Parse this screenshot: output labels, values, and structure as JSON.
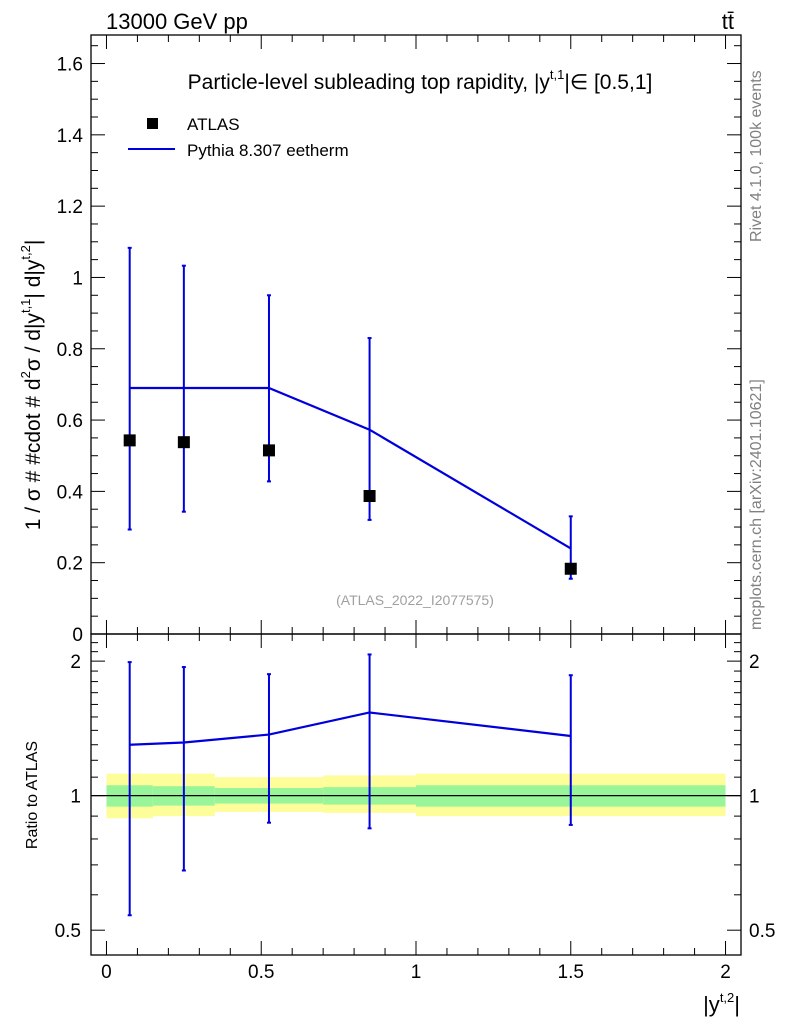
{
  "header": {
    "energy_label": "13000 GeV pp",
    "process_label": "tt̄"
  },
  "side_labels": {
    "rivet": "Rivet 4.1.0,  100k events",
    "mcplots": "mcplots.cern.ch [arXiv:2401.10621]"
  },
  "watermark": "(ATLAS_2022_I2077575)",
  "colors": {
    "data": "#000000",
    "mc": "#0000dd",
    "band_1sigma": "#99f599",
    "band_2sigma": "#fdfd99"
  },
  "chart_data": [
    {
      "type": "scatter",
      "title": "Particle-level subleading top rapidity, |y^{t,1}| ∈ [0.5,1]",
      "title_parts": {
        "pre": "Particle-level subleading top rapidity, |y",
        "sup": "t,1",
        "post": "|∈ [0.5,1]"
      },
      "xlabel": "",
      "ylabel": "1 / σ # #cdot # d²σ / d|y^{t,1}| d|y^{t,2}|",
      "ylabel_parts": {
        "a": "1 / σ # #cdot # d",
        "b": "2",
        "c": "σ / d|y",
        "d": "t,1",
        "e": "| d|y",
        "f": "t,2",
        "g": "|"
      },
      "xlim": [
        -0.05,
        2.05
      ],
      "ylim": [
        0,
        1.68
      ],
      "y_ticks": [
        0,
        0.2,
        0.4,
        0.6,
        0.8,
        1,
        1.2,
        1.4,
        1.6
      ],
      "y_tick_labels": [
        "0",
        "0.2",
        "0.4",
        "0.6",
        "0.8",
        "1",
        "1.2",
        "1.4",
        "1.6"
      ],
      "legend": {
        "position": "top-left",
        "entries": [
          "ATLAS",
          "Pythia 8.307 eetherm"
        ]
      },
      "series": [
        {
          "name": "ATLAS",
          "marker": "square",
          "x": [
            0.075,
            0.25,
            0.525,
            0.85,
            1.5
          ],
          "y": [
            0.543,
            0.538,
            0.515,
            0.387,
            0.183
          ],
          "err_low": [
            0.25,
            0.195,
            0.087,
            0.067,
            0.028
          ],
          "err_high": [
            0.54,
            0.495,
            0.435,
            0.443,
            0.147
          ]
        },
        {
          "name": "Pythia 8.307 eetherm",
          "type": "line",
          "x": [
            0.075,
            0.25,
            0.525,
            0.85,
            1.5
          ],
          "y": [
            0.69,
            0.69,
            0.69,
            0.573,
            0.24
          ]
        }
      ]
    },
    {
      "type": "scatter",
      "xlabel": "|y^{t,2}|",
      "xlabel_parts": {
        "base": "|y",
        "sup": "t,2",
        "end": "|"
      },
      "ylabel": "Ratio to ATLAS",
      "yscale": "log",
      "xlim": [
        -0.05,
        2.05
      ],
      "ylim": [
        0.44,
        2.3
      ],
      "x_ticks": [
        0,
        0.5,
        1,
        1.5,
        2
      ],
      "x_tick_labels": [
        "0",
        "0.5",
        "1",
        "1.5",
        "2"
      ],
      "y_ticks": [
        0.5,
        1,
        2
      ],
      "y_tick_labels": [
        "0.5",
        "1",
        "2"
      ],
      "bands": {
        "edges": [
          0,
          0.15,
          0.35,
          0.7,
          1.0,
          2.0
        ],
        "inner": [
          [
            0.945,
            1.055
          ],
          [
            0.95,
            1.05
          ],
          [
            0.96,
            1.04
          ],
          [
            0.955,
            1.045
          ],
          [
            0.945,
            1.055
          ]
        ],
        "outer": [
          [
            0.89,
            1.12
          ],
          [
            0.9,
            1.12
          ],
          [
            0.92,
            1.1
          ],
          [
            0.915,
            1.11
          ],
          [
            0.9,
            1.12
          ]
        ]
      },
      "series": [
        {
          "name": "Pythia 8.307 eetherm",
          "x": [
            0.075,
            0.25,
            0.525,
            0.85,
            1.5
          ],
          "y": [
            1.3,
            1.315,
            1.37,
            1.535,
            1.36
          ],
          "err_low": [
            0.76,
            0.635,
            0.5,
            0.69,
            0.5
          ],
          "err_high": [
            0.69,
            0.625,
            0.5,
            0.535,
            0.5
          ]
        }
      ]
    }
  ]
}
